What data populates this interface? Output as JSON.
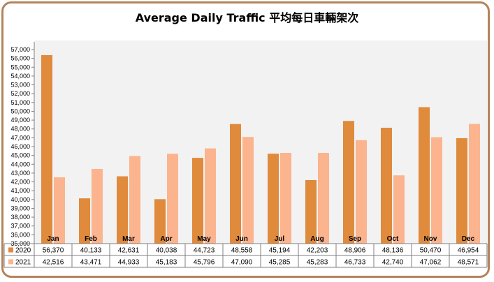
{
  "chart_data": {
    "type": "bar",
    "title": "Average Daily Traffic 平均每日車輛架次",
    "categories": [
      "Jan",
      "Feb",
      "Mar",
      "Apr",
      "May",
      "Jun",
      "Jul",
      "Aug",
      "Sep",
      "Oct",
      "Nov",
      "Dec"
    ],
    "series": [
      {
        "name": "2020",
        "color": "#e08a3c",
        "values": [
          56370,
          40133,
          42631,
          40038,
          44723,
          48558,
          45194,
          42203,
          48906,
          48136,
          50470,
          46954
        ],
        "labels": [
          "56,370",
          "40,133",
          "42,631",
          "40,038",
          "44,723",
          "48,558",
          "45,194",
          "42,203",
          "48,906",
          "48,136",
          "50,470",
          "46,954"
        ]
      },
      {
        "name": "2021",
        "color": "#fbb48e",
        "values": [
          42516,
          43471,
          44933,
          45183,
          45796,
          47090,
          45285,
          45283,
          46733,
          42740,
          47062,
          48571
        ],
        "labels": [
          "42,516",
          "43,471",
          "44,933",
          "45,183",
          "45,796",
          "47,090",
          "45,285",
          "45,283",
          "46,733",
          "42,740",
          "47,062",
          "48,571"
        ]
      }
    ],
    "ylim": [
      35000,
      57000
    ],
    "yticks": [
      35000,
      36000,
      37000,
      38000,
      39000,
      40000,
      41000,
      42000,
      43000,
      44000,
      45000,
      46000,
      47000,
      48000,
      49000,
      50000,
      51000,
      52000,
      53000,
      54000,
      55000,
      56000,
      57000
    ],
    "ytick_labels": [
      "35,000",
      "36,000",
      "37,000",
      "38,000",
      "39,000",
      "40,000",
      "41,000",
      "42,000",
      "43,000",
      "44,000",
      "45,000",
      "46,000",
      "47,000",
      "48,000",
      "49,000",
      "50,000",
      "51,000",
      "52,000",
      "53,000",
      "54,000",
      "55,000",
      "56,000",
      "57,000"
    ],
    "grid": false,
    "data_table": true
  }
}
